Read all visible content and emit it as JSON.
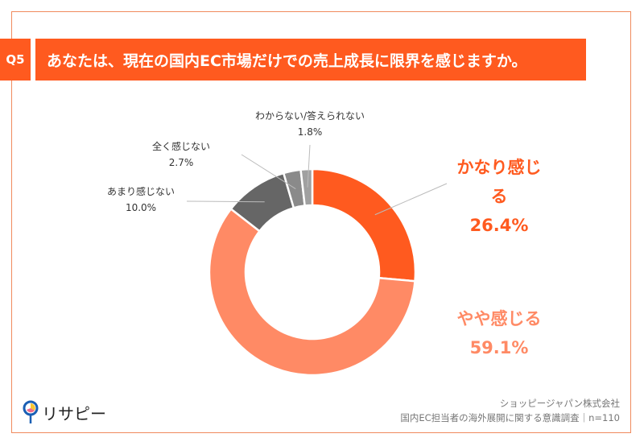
{
  "question_number": "Q5",
  "question": "あなたは、現在の国内EC市場だけでの売上成長に限界を感じますか。",
  "logo_text": "リサピー",
  "source": {
    "company": "ショッピージャパン株式会社",
    "survey": "国内EC担当者の海外展開に関する意識調査｜n=110"
  },
  "chart_data": {
    "type": "pie",
    "variant": "donut",
    "categories": [
      "かなり感じる",
      "やや感じる",
      "あまり感じない",
      "全く感じない",
      "わからない/答えられない"
    ],
    "values": [
      26.4,
      59.1,
      10.0,
      2.7,
      1.8
    ],
    "labels": [
      "26.4%",
      "59.1%",
      "10.0%",
      "2.7%",
      "1.8%"
    ],
    "colors": [
      "#ff5a1f",
      "#ff8a65",
      "#666666",
      "#8a8a8a",
      "#a0a0a0"
    ],
    "start": "top, clockwise"
  }
}
